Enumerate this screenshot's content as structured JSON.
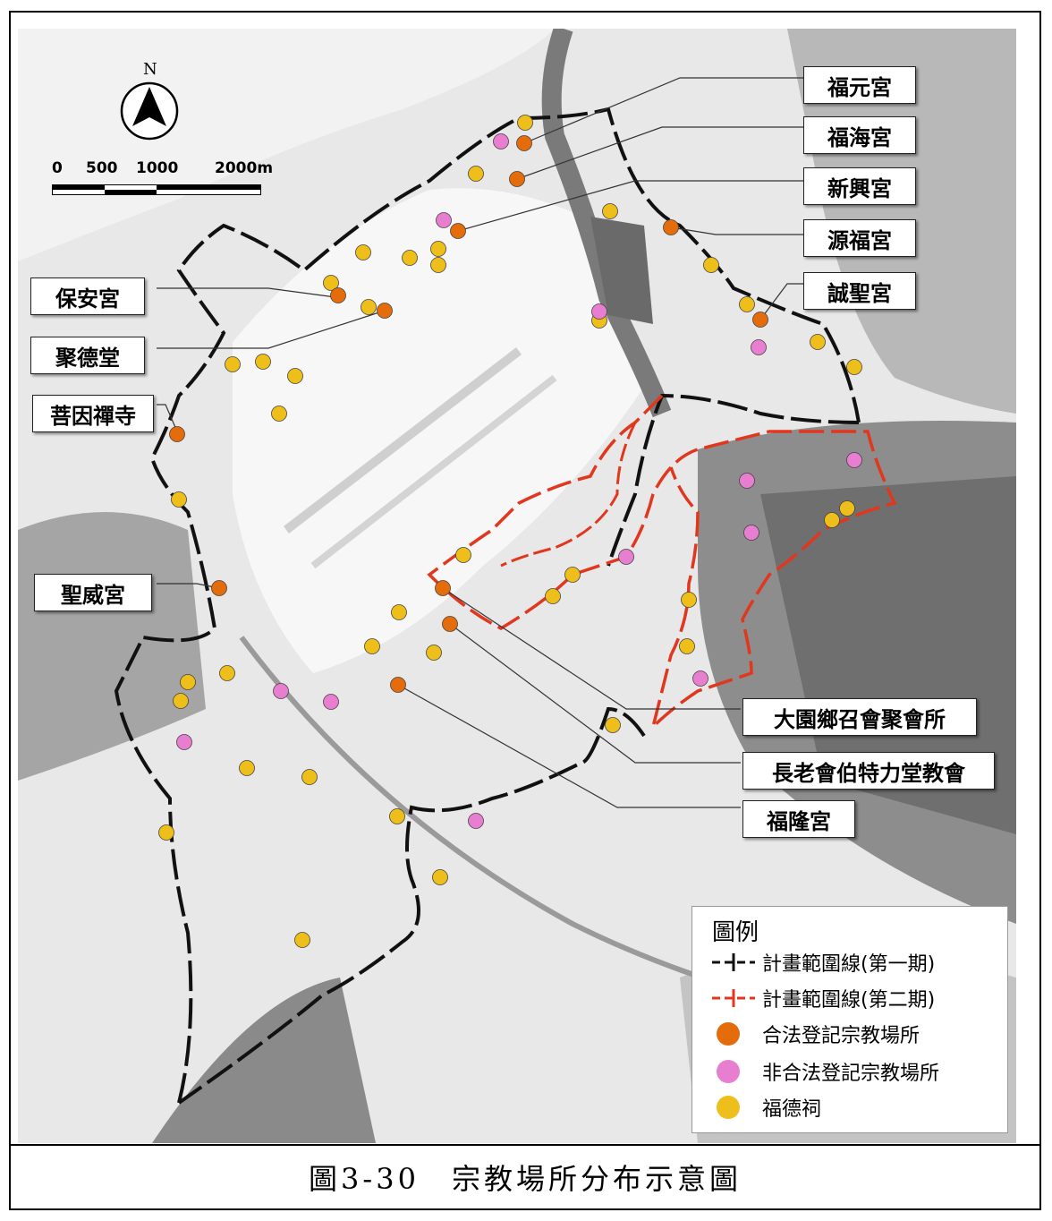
{
  "caption": "圖3-30　宗教場所分布示意圖",
  "north": {
    "letter": "N"
  },
  "scale": {
    "ticks": [
      "0",
      "500",
      "1000",
      "2000m"
    ]
  },
  "labels": {
    "fuyuan": "福元宮",
    "fuhai": "福海宮",
    "xinxing": "新興宮",
    "yuanfu": "源福宮",
    "chengsheng": "誠聖宮",
    "baoan": "保安宮",
    "jude": "聚德堂",
    "puyin": "菩因禪寺",
    "shengwei": "聖威宮",
    "zhaohui": "大園鄉召會聚會所",
    "zhanglao": "長老會伯特力堂教會",
    "fulong": "福隆宮"
  },
  "legend": {
    "title": "圖例",
    "items": [
      {
        "label": "計畫範圍線(第一期)",
        "symbol": "line",
        "color": "#111111"
      },
      {
        "label": "計畫範圍線(第二期)",
        "symbol": "line",
        "color": "#e0371e"
      },
      {
        "label": "合法登記宗教場所",
        "symbol": "dot",
        "color": "#e46c0a"
      },
      {
        "label": "非合法登記宗教場所",
        "symbol": "dot",
        "color": "#e77ed0"
      },
      {
        "label": "福德祠",
        "symbol": "dot",
        "color": "#eebf1a"
      }
    ]
  },
  "colors": {
    "legal": "#e46c0a",
    "illegal": "#e77ed0",
    "shrine": "#eebf1a",
    "phase1": "#111111",
    "phase2": "#e0371e"
  }
}
